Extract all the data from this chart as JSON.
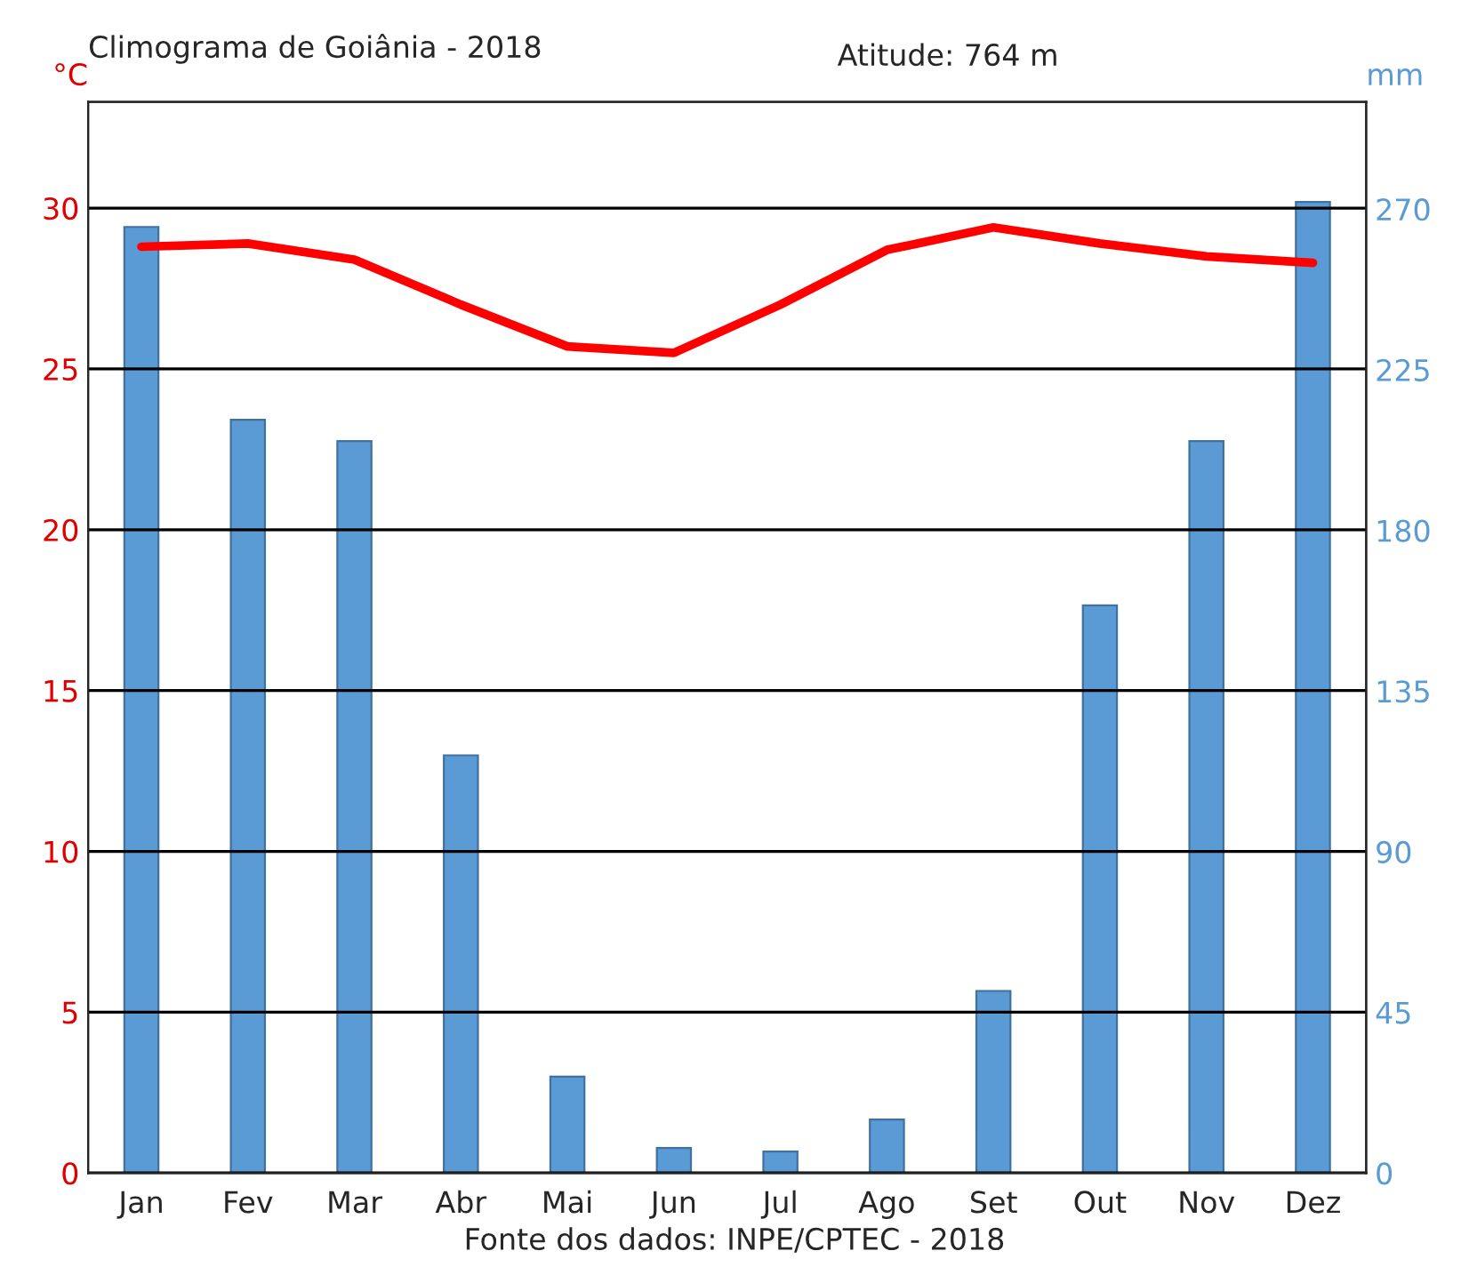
{
  "chart_data": {
    "type": "bar",
    "title": "Climograma de Goiânia - 2018",
    "annotations": [
      "Atitude: 764 m",
      "Fonte dos dados: INPE/CPTEC - 2018"
    ],
    "ylabel": "°C",
    "y2label": "mm",
    "categories": [
      "Jan",
      "Fev",
      "Mar",
      "Abr",
      "Mai",
      "Jun",
      "Jul",
      "Ago",
      "Set",
      "Out",
      "Nov",
      "Dez"
    ],
    "series": [
      {
        "axis": "y2",
        "color": "#5b9bd5",
        "values": [
          265,
          211,
          205,
          117,
          27,
          7,
          6,
          15,
          51,
          159,
          205,
          272
        ]
      },
      {
        "type": "line",
        "axis": "y",
        "color": "#ff0000",
        "values": [
          28.8,
          28.9,
          28.4,
          27.0,
          25.7,
          25.5,
          27.0,
          28.7,
          29.4,
          28.9,
          28.5,
          28.3
        ]
      }
    ],
    "ylim": [
      0,
      33.3
    ],
    "yticks": [
      0,
      5,
      10,
      15,
      20,
      25,
      30
    ],
    "y2lim": [
      0,
      300
    ],
    "y2ticks": [
      0,
      45,
      90,
      135,
      180,
      225,
      270
    ],
    "grid": "y",
    "legend": false
  }
}
